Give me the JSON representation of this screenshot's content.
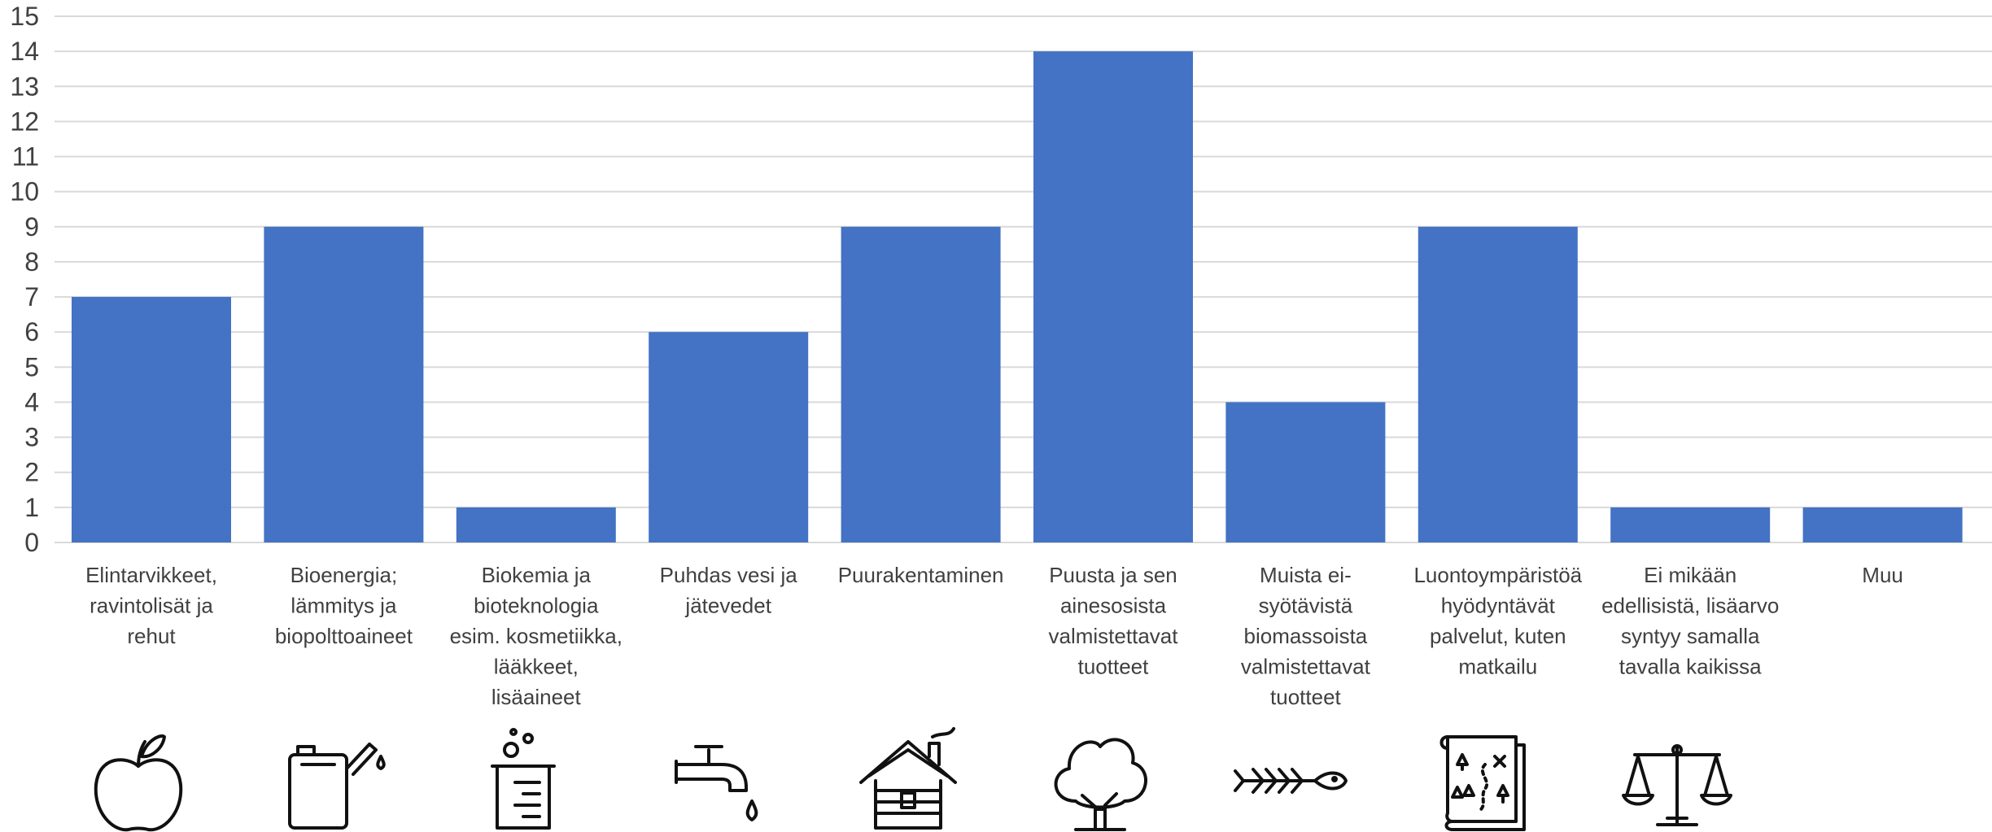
{
  "chart_data": {
    "type": "bar",
    "categories": [
      [
        "Elintarvikkeet,",
        "ravintolisät ja",
        "rehut"
      ],
      [
        "Bioenergia;",
        "lämmitys ja",
        "biopolttoaineet"
      ],
      [
        "Biokemia ja",
        "bioteknologia",
        "esim. kosmetiikka,",
        "lääkkeet,",
        "lisäaineet"
      ],
      [
        "Puhdas vesi ja",
        "jätevedet"
      ],
      [
        "Puurakentaminen"
      ],
      [
        "Puusta ja sen",
        "ainesosista",
        "valmistettavat",
        "tuotteet"
      ],
      [
        "Muista ei-",
        "syötävistä",
        "biomassoista",
        "valmistettavat",
        "tuotteet"
      ],
      [
        "Luontoympäristöä",
        "hyödyntävät",
        "palvelut, kuten",
        "matkailu"
      ],
      [
        "Ei mikään",
        "edellisistä, lisäarvo",
        "syntyy samalla",
        "tavalla kaikissa"
      ],
      [
        "Muu"
      ]
    ],
    "values": [
      7,
      9,
      1,
      6,
      9,
      14,
      4,
      9,
      1,
      1
    ],
    "ylim": [
      0,
      15
    ],
    "yticks": [
      "0",
      "1",
      "2",
      "3",
      "4",
      "5",
      "6",
      "7",
      "8",
      "9",
      "10",
      "11",
      "12",
      "13",
      "14",
      "15"
    ],
    "grid": true,
    "bar_color": "#4472C4",
    "icons": [
      "apple-icon",
      "fuel-can-icon",
      "beaker-icon",
      "water-tap-icon",
      "log-cabin-icon",
      "tree-icon",
      "fish-bone-icon",
      "treasure-map-icon",
      "balance-scale-icon",
      null
    ]
  }
}
